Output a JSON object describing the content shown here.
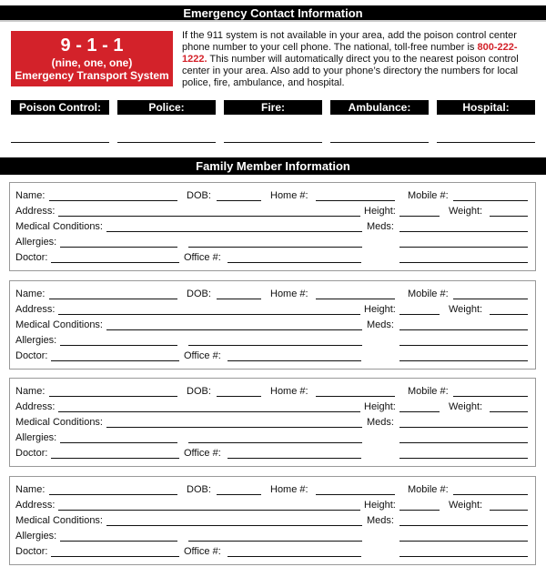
{
  "emergency": {
    "title": "Emergency Contact Information",
    "box": {
      "number": "9 - 1 - 1",
      "spelled": "(nine, one, one)",
      "system": "Emergency Transport System"
    },
    "info_before": "If the 911 system is not available in your area, add the poison control center phone number to your cell phone. The national, toll-free number is ",
    "phone": "800-222-1222.",
    "info_after": " This number will automatically direct you to the nearest poison control center in your area. Also add to your phone’s directory the numbers for local police, fire, ambulance, and hospital.",
    "contacts": [
      "Poison Control:",
      "Police:",
      "Fire:",
      "Ambulance:",
      "Hospital:"
    ],
    "accent": "#d3222a"
  },
  "family": {
    "title": "Family Member Information",
    "labels": {
      "name": "Name:",
      "dob": "DOB:",
      "home": "Home #:",
      "mobile": "Mobile #:",
      "address": "Address:",
      "height": "Height:",
      "weight": "Weight:",
      "medical": "Medical Conditions:",
      "meds": "Meds:",
      "allergies": "Allergies:",
      "doctor": "Doctor:",
      "office": "Office #:"
    },
    "member_count": 4
  }
}
